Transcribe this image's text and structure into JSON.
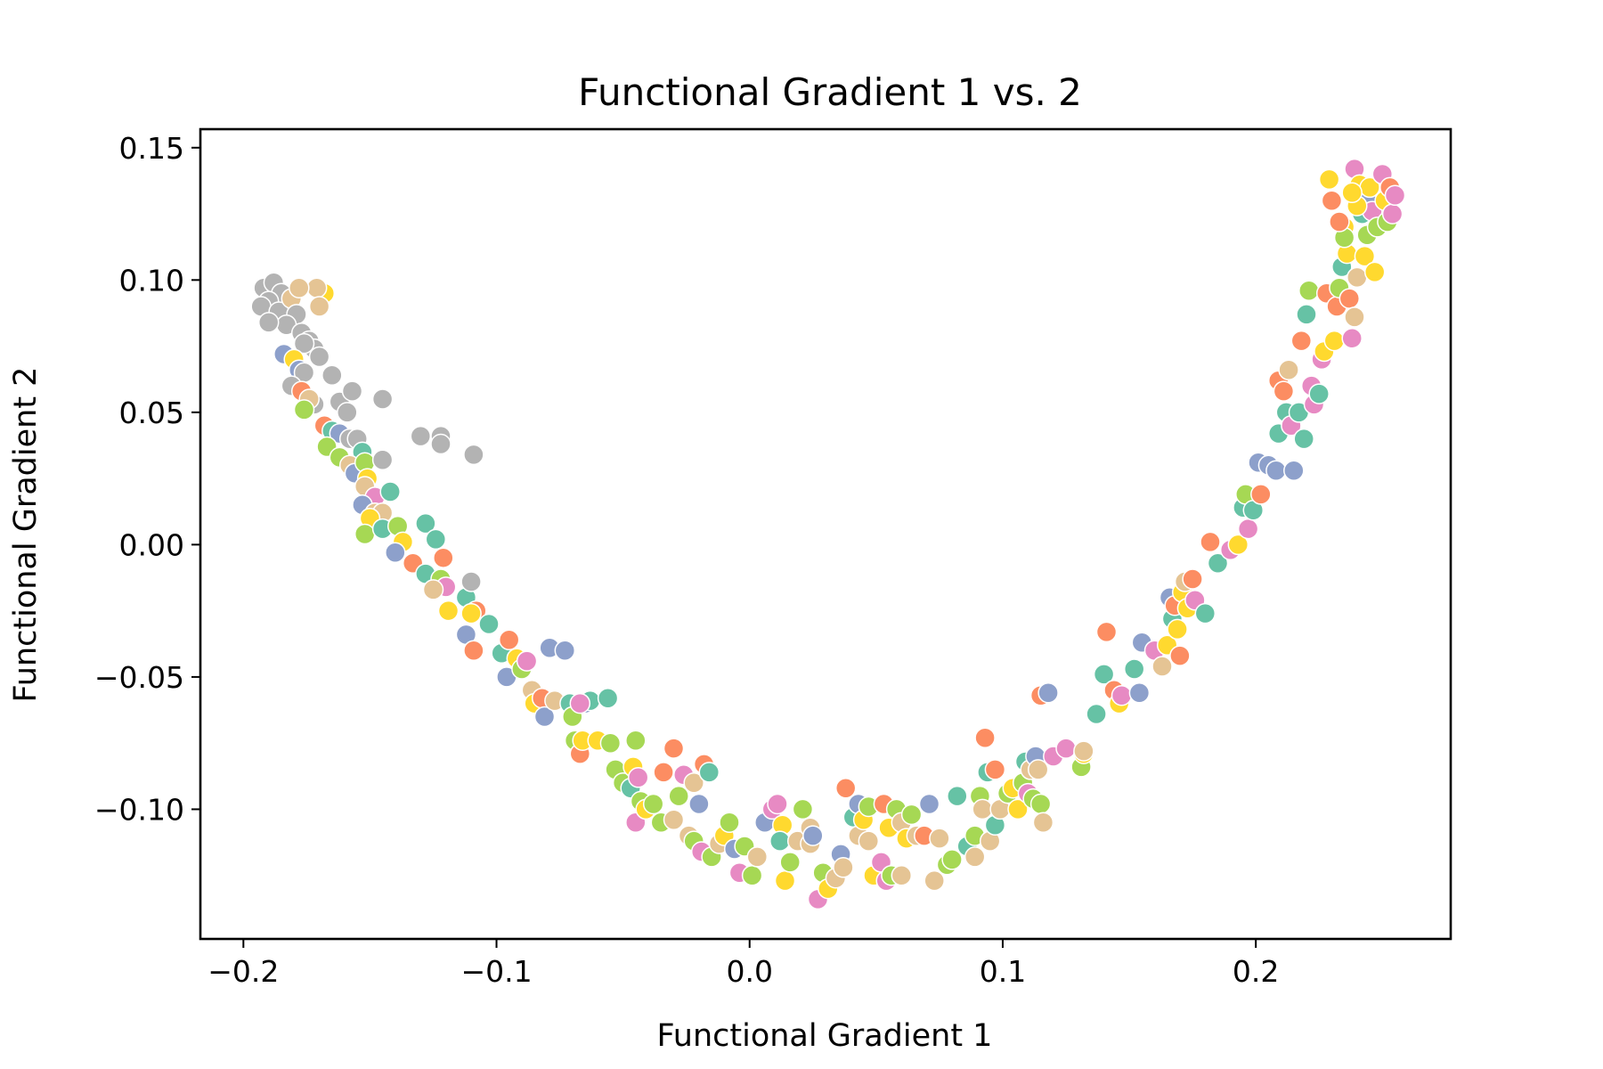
{
  "chart_data": {
    "type": "scatter",
    "title": "Functional Gradient 1 vs. 2",
    "xlabel": "Functional Gradient 1",
    "ylabel": "Functional Gradient 2",
    "xlim": [
      -0.217,
      0.277
    ],
    "ylim": [
      -0.149,
      0.157
    ],
    "xticks": [
      -0.2,
      -0.1,
      0.0,
      0.1,
      0.2
    ],
    "xtick_labels": [
      "−0.2",
      "−0.1",
      "0.0",
      "0.1",
      "0.2"
    ],
    "yticks": [
      -0.1,
      -0.05,
      0.0,
      0.05,
      0.1,
      0.15
    ],
    "ytick_labels": [
      "−0.10",
      "−0.05",
      "0.00",
      "0.05",
      "0.10",
      "0.15"
    ],
    "grid": false,
    "legend": "none",
    "colors": [
      "#66c2a5",
      "#fc8d62",
      "#8da0cb",
      "#e78ac3",
      "#a6d854",
      "#ffd92f",
      "#e5c494",
      "#b3b3b3"
    ],
    "points": [
      [
        -0.192,
        0.097,
        7
      ],
      [
        -0.188,
        0.099,
        7
      ],
      [
        -0.185,
        0.095,
        7
      ],
      [
        -0.19,
        0.092,
        7
      ],
      [
        -0.193,
        0.09,
        7
      ],
      [
        -0.186,
        0.088,
        7
      ],
      [
        -0.181,
        0.093,
        6
      ],
      [
        -0.179,
        0.087,
        7
      ],
      [
        -0.183,
        0.083,
        7
      ],
      [
        -0.177,
        0.08,
        7
      ],
      [
        -0.19,
        0.084,
        7
      ],
      [
        -0.174,
        0.077,
        7
      ],
      [
        -0.172,
        0.074,
        7
      ],
      [
        -0.17,
        0.071,
        7
      ],
      [
        -0.176,
        0.076,
        7
      ],
      [
        -0.168,
        0.095,
        5
      ],
      [
        -0.171,
        0.097,
        6
      ],
      [
        -0.17,
        0.09,
        6
      ],
      [
        -0.178,
        0.097,
        6
      ],
      [
        -0.184,
        0.072,
        2
      ],
      [
        -0.18,
        0.07,
        5
      ],
      [
        -0.178,
        0.066,
        2
      ],
      [
        -0.176,
        0.065,
        7
      ],
      [
        -0.181,
        0.06,
        7
      ],
      [
        -0.177,
        0.058,
        1
      ],
      [
        -0.172,
        0.053,
        7
      ],
      [
        -0.174,
        0.055,
        6
      ],
      [
        -0.176,
        0.051,
        4
      ],
      [
        -0.165,
        0.064,
        7
      ],
      [
        -0.162,
        0.054,
        7
      ],
      [
        -0.159,
        0.05,
        7
      ],
      [
        -0.157,
        0.058,
        7
      ],
      [
        -0.145,
        0.055,
        7
      ],
      [
        -0.168,
        0.045,
        1
      ],
      [
        -0.165,
        0.043,
        0
      ],
      [
        -0.162,
        0.042,
        2
      ],
      [
        -0.158,
        0.04,
        7
      ],
      [
        -0.155,
        0.04,
        7
      ],
      [
        -0.153,
        0.035,
        0
      ],
      [
        -0.167,
        0.037,
        4
      ],
      [
        -0.162,
        0.033,
        4
      ],
      [
        -0.158,
        0.03,
        6
      ],
      [
        -0.156,
        0.027,
        2
      ],
      [
        -0.152,
        0.031,
        4
      ],
      [
        -0.145,
        0.032,
        7
      ],
      [
        -0.151,
        0.025,
        5
      ],
      [
        -0.152,
        0.022,
        6
      ],
      [
        -0.148,
        0.018,
        3
      ],
      [
        -0.153,
        0.015,
        2
      ],
      [
        -0.148,
        0.012,
        6
      ],
      [
        -0.145,
        0.012,
        6
      ],
      [
        -0.15,
        0.01,
        5
      ],
      [
        -0.152,
        0.004,
        4
      ],
      [
        -0.145,
        0.006,
        0
      ],
      [
        -0.139,
        0.007,
        4
      ],
      [
        -0.137,
        0.001,
        5
      ],
      [
        -0.14,
        -0.003,
        2
      ],
      [
        -0.142,
        0.02,
        0
      ],
      [
        -0.128,
        0.008,
        0
      ],
      [
        -0.124,
        0.002,
        0
      ],
      [
        -0.133,
        -0.007,
        1
      ],
      [
        -0.128,
        -0.011,
        0
      ],
      [
        -0.122,
        -0.013,
        4
      ],
      [
        -0.12,
        -0.016,
        3
      ],
      [
        -0.125,
        -0.017,
        6
      ],
      [
        -0.121,
        -0.005,
        1
      ],
      [
        -0.119,
        -0.025,
        5
      ],
      [
        -0.112,
        -0.02,
        0
      ],
      [
        -0.11,
        -0.014,
        7
      ],
      [
        -0.108,
        -0.025,
        1
      ],
      [
        -0.11,
        -0.026,
        5
      ],
      [
        -0.112,
        -0.034,
        2
      ],
      [
        -0.109,
        -0.04,
        1
      ],
      [
        -0.103,
        -0.03,
        0
      ],
      [
        -0.13,
        0.041,
        7
      ],
      [
        -0.122,
        0.041,
        7
      ],
      [
        -0.122,
        0.038,
        7
      ],
      [
        -0.109,
        0.034,
        7
      ],
      [
        -0.098,
        -0.041,
        0
      ],
      [
        -0.095,
        -0.036,
        1
      ],
      [
        -0.096,
        -0.05,
        2
      ],
      [
        -0.092,
        -0.043,
        5
      ],
      [
        -0.09,
        -0.047,
        4
      ],
      [
        -0.088,
        -0.044,
        3
      ],
      [
        -0.086,
        -0.055,
        6
      ],
      [
        -0.085,
        -0.06,
        5
      ],
      [
        -0.082,
        -0.058,
        1
      ],
      [
        -0.081,
        -0.065,
        2
      ],
      [
        -0.079,
        -0.039,
        2
      ],
      [
        -0.073,
        -0.04,
        2
      ],
      [
        -0.077,
        -0.059,
        6
      ],
      [
        -0.071,
        -0.06,
        0
      ],
      [
        -0.07,
        -0.065,
        4
      ],
      [
        -0.065,
        -0.06,
        2
      ],
      [
        -0.063,
        -0.059,
        0
      ],
      [
        -0.067,
        -0.06,
        3
      ],
      [
        -0.056,
        -0.058,
        0
      ],
      [
        -0.069,
        -0.074,
        4
      ],
      [
        -0.067,
        -0.079,
        1
      ],
      [
        -0.066,
        -0.074,
        5
      ],
      [
        -0.06,
        -0.074,
        5
      ],
      [
        -0.055,
        -0.075,
        4
      ],
      [
        -0.053,
        -0.085,
        4
      ],
      [
        -0.05,
        -0.09,
        4
      ],
      [
        -0.047,
        -0.092,
        0
      ],
      [
        -0.046,
        -0.084,
        5
      ],
      [
        -0.045,
        -0.074,
        4
      ],
      [
        -0.044,
        -0.088,
        3
      ],
      [
        -0.043,
        -0.097,
        4
      ],
      [
        -0.045,
        -0.105,
        3
      ],
      [
        -0.041,
        -0.1,
        5
      ],
      [
        -0.038,
        -0.098,
        4
      ],
      [
        -0.034,
        -0.086,
        1
      ],
      [
        -0.03,
        -0.077,
        1
      ],
      [
        -0.026,
        -0.087,
        3
      ],
      [
        -0.035,
        -0.105,
        4
      ],
      [
        -0.03,
        -0.104,
        6
      ],
      [
        -0.028,
        -0.095,
        4
      ],
      [
        -0.024,
        -0.11,
        6
      ],
      [
        -0.022,
        -0.09,
        6
      ],
      [
        -0.018,
        -0.083,
        1
      ],
      [
        -0.016,
        -0.086,
        0
      ],
      [
        -0.02,
        -0.098,
        2
      ],
      [
        -0.022,
        -0.112,
        4
      ],
      [
        -0.019,
        -0.116,
        3
      ],
      [
        -0.015,
        -0.118,
        4
      ],
      [
        -0.012,
        -0.113,
        6
      ],
      [
        -0.01,
        -0.11,
        5
      ],
      [
        -0.008,
        -0.105,
        4
      ],
      [
        -0.006,
        -0.115,
        2
      ],
      [
        -0.004,
        -0.124,
        3
      ],
      [
        -0.002,
        -0.114,
        4
      ],
      [
        0.001,
        -0.125,
        4
      ],
      [
        0.003,
        -0.118,
        6
      ],
      [
        0.006,
        -0.105,
        2
      ],
      [
        0.009,
        -0.1,
        3
      ],
      [
        0.011,
        -0.098,
        3
      ],
      [
        0.013,
        -0.106,
        5
      ],
      [
        0.012,
        -0.112,
        0
      ],
      [
        0.014,
        -0.127,
        5
      ],
      [
        0.016,
        -0.12,
        4
      ],
      [
        0.019,
        -0.112,
        6
      ],
      [
        0.021,
        -0.1,
        4
      ],
      [
        0.024,
        -0.107,
        6
      ],
      [
        0.024,
        -0.113,
        6
      ],
      [
        0.025,
        -0.11,
        2
      ],
      [
        0.027,
        -0.134,
        3
      ],
      [
        0.029,
        -0.124,
        4
      ],
      [
        0.031,
        -0.13,
        5
      ],
      [
        0.034,
        -0.126,
        6
      ],
      [
        0.036,
        -0.117,
        2
      ],
      [
        0.037,
        -0.122,
        6
      ],
      [
        0.038,
        -0.092,
        1
      ],
      [
        0.041,
        -0.103,
        0
      ],
      [
        0.043,
        -0.098,
        2
      ],
      [
        0.043,
        -0.11,
        6
      ],
      [
        0.045,
        -0.104,
        5
      ],
      [
        0.047,
        -0.099,
        4
      ],
      [
        0.047,
        -0.112,
        6
      ],
      [
        0.049,
        -0.125,
        5
      ],
      [
        0.052,
        -0.12,
        3
      ],
      [
        0.053,
        -0.098,
        1
      ],
      [
        0.054,
        -0.127,
        3
      ],
      [
        0.055,
        -0.107,
        5
      ],
      [
        0.056,
        -0.125,
        4
      ],
      [
        0.058,
        -0.1,
        4
      ],
      [
        0.06,
        -0.105,
        6
      ],
      [
        0.06,
        -0.125,
        6
      ],
      [
        0.062,
        -0.111,
        5
      ],
      [
        0.064,
        -0.102,
        4
      ],
      [
        0.066,
        -0.11,
        6
      ],
      [
        0.069,
        -0.11,
        1
      ],
      [
        0.071,
        -0.098,
        2
      ],
      [
        0.073,
        -0.127,
        6
      ],
      [
        0.075,
        -0.111,
        6
      ],
      [
        0.078,
        -0.121,
        4
      ],
      [
        0.08,
        -0.119,
        4
      ],
      [
        0.082,
        -0.095,
        0
      ],
      [
        0.086,
        -0.114,
        0
      ],
      [
        0.089,
        -0.118,
        6
      ],
      [
        0.089,
        -0.11,
        4
      ],
      [
        0.091,
        -0.095,
        4
      ],
      [
        0.092,
        -0.1,
        6
      ],
      [
        0.093,
        -0.073,
        1
      ],
      [
        0.094,
        -0.086,
        0
      ],
      [
        0.095,
        -0.112,
        6
      ],
      [
        0.097,
        -0.106,
        0
      ],
      [
        0.097,
        -0.085,
        1
      ],
      [
        0.099,
        -0.1,
        6
      ],
      [
        0.102,
        -0.094,
        4
      ],
      [
        0.104,
        -0.092,
        5
      ],
      [
        0.106,
        -0.1,
        5
      ],
      [
        0.108,
        -0.09,
        4
      ],
      [
        0.109,
        -0.082,
        0
      ],
      [
        0.11,
        -0.094,
        3
      ],
      [
        0.111,
        -0.085,
        6
      ],
      [
        0.112,
        -0.096,
        4
      ],
      [
        0.113,
        -0.08,
        2
      ],
      [
        0.115,
        -0.098,
        4
      ],
      [
        0.116,
        -0.105,
        6
      ],
      [
        0.114,
        -0.085,
        6
      ],
      [
        0.115,
        -0.057,
        1
      ],
      [
        0.118,
        -0.056,
        2
      ],
      [
        0.12,
        -0.08,
        3
      ],
      [
        0.125,
        -0.077,
        3
      ],
      [
        0.131,
        -0.084,
        4
      ],
      [
        0.132,
        -0.079,
        5
      ],
      [
        0.132,
        -0.078,
        6
      ],
      [
        0.137,
        -0.064,
        0
      ],
      [
        0.14,
        -0.049,
        0
      ],
      [
        0.141,
        -0.033,
        1
      ],
      [
        0.144,
        -0.055,
        1
      ],
      [
        0.146,
        -0.06,
        5
      ],
      [
        0.147,
        -0.057,
        3
      ],
      [
        0.152,
        -0.047,
        0
      ],
      [
        0.154,
        -0.056,
        2
      ],
      [
        0.155,
        -0.037,
        2
      ],
      [
        0.16,
        -0.04,
        3
      ],
      [
        0.163,
        -0.046,
        6
      ],
      [
        0.165,
        -0.038,
        5
      ],
      [
        0.166,
        -0.02,
        2
      ],
      [
        0.167,
        -0.028,
        0
      ],
      [
        0.168,
        -0.023,
        1
      ],
      [
        0.169,
        -0.032,
        5
      ],
      [
        0.17,
        -0.042,
        1
      ],
      [
        0.171,
        -0.018,
        5
      ],
      [
        0.172,
        -0.014,
        6
      ],
      [
        0.173,
        -0.024,
        5
      ],
      [
        0.175,
        -0.013,
        1
      ],
      [
        0.176,
        -0.021,
        3
      ],
      [
        0.18,
        -0.026,
        0
      ],
      [
        0.182,
        0.001,
        1
      ],
      [
        0.185,
        -0.007,
        0
      ],
      [
        0.19,
        -0.002,
        3
      ],
      [
        0.193,
        0.0,
        5
      ],
      [
        0.195,
        0.014,
        0
      ],
      [
        0.196,
        0.019,
        4
      ],
      [
        0.197,
        0.006,
        3
      ],
      [
        0.199,
        0.013,
        0
      ],
      [
        0.201,
        0.031,
        2
      ],
      [
        0.202,
        0.019,
        1
      ],
      [
        0.205,
        0.03,
        2
      ],
      [
        0.208,
        0.028,
        2
      ],
      [
        0.209,
        0.042,
        0
      ],
      [
        0.209,
        0.062,
        1
      ],
      [
        0.211,
        0.058,
        1
      ],
      [
        0.212,
        0.05,
        0
      ],
      [
        0.213,
        0.066,
        6
      ],
      [
        0.214,
        0.045,
        3
      ],
      [
        0.215,
        0.028,
        2
      ],
      [
        0.217,
        0.05,
        0
      ],
      [
        0.218,
        0.077,
        1
      ],
      [
        0.219,
        0.04,
        0
      ],
      [
        0.22,
        0.087,
        0
      ],
      [
        0.221,
        0.096,
        4
      ],
      [
        0.222,
        0.06,
        3
      ],
      [
        0.223,
        0.053,
        3
      ],
      [
        0.225,
        0.057,
        0
      ],
      [
        0.226,
        0.07,
        3
      ],
      [
        0.227,
        0.073,
        5
      ],
      [
        0.228,
        0.095,
        1
      ],
      [
        0.229,
        0.138,
        5
      ],
      [
        0.23,
        0.13,
        1
      ],
      [
        0.231,
        0.077,
        5
      ],
      [
        0.232,
        0.09,
        1
      ],
      [
        0.233,
        0.097,
        4
      ],
      [
        0.234,
        0.105,
        0
      ],
      [
        0.235,
        0.12,
        5
      ],
      [
        0.236,
        0.11,
        5
      ],
      [
        0.237,
        0.093,
        1
      ],
      [
        0.238,
        0.078,
        3
      ],
      [
        0.239,
        0.142,
        3
      ],
      [
        0.239,
        0.086,
        6
      ],
      [
        0.24,
        0.101,
        6
      ],
      [
        0.241,
        0.136,
        5
      ],
      [
        0.242,
        0.125,
        0
      ],
      [
        0.243,
        0.109,
        5
      ],
      [
        0.244,
        0.13,
        2
      ],
      [
        0.244,
        0.117,
        4
      ],
      [
        0.245,
        0.135,
        5
      ],
      [
        0.246,
        0.126,
        3
      ],
      [
        0.247,
        0.103,
        5
      ],
      [
        0.248,
        0.12,
        4
      ],
      [
        0.25,
        0.14,
        3
      ],
      [
        0.251,
        0.13,
        5
      ],
      [
        0.252,
        0.122,
        4
      ],
      [
        0.253,
        0.135,
        1
      ],
      [
        0.254,
        0.125,
        3
      ],
      [
        0.255,
        0.132,
        3
      ],
      [
        0.24,
        0.128,
        5
      ],
      [
        0.238,
        0.133,
        5
      ],
      [
        0.235,
        0.116,
        4
      ],
      [
        0.233,
        0.122,
        1
      ]
    ]
  }
}
